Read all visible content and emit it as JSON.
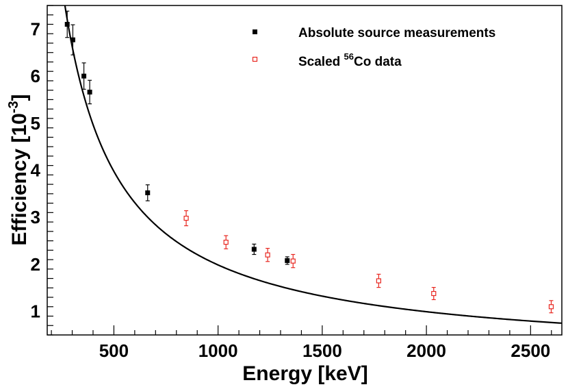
{
  "chart_data": {
    "type": "scatter",
    "title": "",
    "xlabel": "Energy [keV]",
    "ylabel_main": "Efficiency [10",
    "ylabel_exp": "-3",
    "ylabel_close": "]",
    "xlim": [
      180,
      2650
    ],
    "ylim": [
      0.5,
      7.5
    ],
    "x_ticks": [
      500,
      1000,
      1500,
      2000,
      2500
    ],
    "x_tick_labels": [
      "500",
      "1000",
      "1500",
      "2000",
      "2500"
    ],
    "y_ticks": [
      1,
      2,
      3,
      4,
      5,
      6,
      7
    ],
    "y_tick_labels": [
      "1",
      "2",
      "3",
      "4",
      "5",
      "6",
      "7"
    ],
    "x_minor_step": 100,
    "y_minor_step": 0.2,
    "grid": false,
    "legend_position": "top-right",
    "series": [
      {
        "name": "Absolute source measurements",
        "marker": "filled-square",
        "color": "#000000",
        "x": [
          276,
          303,
          356,
          384,
          662,
          1173,
          1332
        ],
        "y": [
          7.1,
          6.77,
          6.0,
          5.66,
          3.52,
          2.32,
          2.08
        ],
        "err": [
          0.28,
          0.32,
          0.28,
          0.25,
          0.17,
          0.11,
          0.08
        ]
      },
      {
        "name_prefix": "Scaled ",
        "name_sup": "56",
        "name_suffix": "Co data",
        "marker": "open-square",
        "color": "#e8261f",
        "x": [
          847,
          1038,
          1238,
          1360,
          1771,
          2035,
          2599
        ],
        "y": [
          2.98,
          2.47,
          2.2,
          2.07,
          1.65,
          1.38,
          1.1
        ],
        "err": [
          0.16,
          0.14,
          0.14,
          0.14,
          0.14,
          0.13,
          0.13
        ]
      }
    ],
    "fit": {
      "type": "power-law",
      "amplitude": 7.2,
      "exponent": -1.0,
      "reference_energy": 276,
      "x_range": [
        240,
        2650
      ],
      "color": "#000000"
    }
  }
}
